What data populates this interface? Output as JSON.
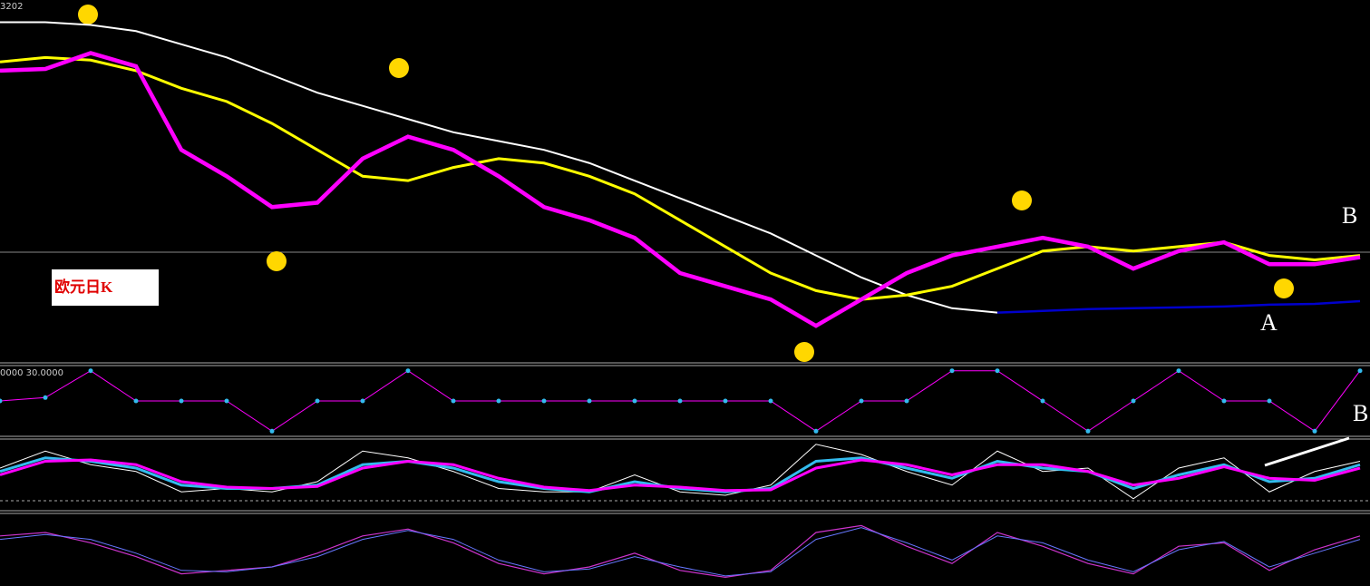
{
  "chart_data": [
    {
      "type": "line",
      "ylim": [
        0,
        400
      ],
      "annotations": {
        "corner": "3202",
        "title": "欧元日K",
        "a": "A",
        "b": "B"
      },
      "series": [
        {
          "name": null,
          "color": "#ffffff",
          "width": 2,
          "values": [
            385,
            385,
            382,
            375,
            360,
            345,
            325,
            305,
            290,
            275,
            260,
            250,
            240,
            225,
            205,
            185,
            165,
            145,
            120,
            95,
            75,
            60,
            55,
            null,
            null,
            null,
            null,
            null,
            null,
            null,
            null
          ]
        },
        {
          "name": null,
          "color": "#0000cc",
          "width": 2.5,
          "values": [
            null,
            null,
            null,
            null,
            null,
            null,
            null,
            null,
            null,
            null,
            null,
            null,
            null,
            null,
            null,
            null,
            null,
            null,
            null,
            null,
            null,
            null,
            55,
            57,
            59,
            60,
            61,
            62,
            64,
            65,
            68
          ]
        },
        {
          "name": null,
          "color": "#ffff00",
          "width": 3,
          "values": [
            340,
            345,
            342,
            330,
            310,
            295,
            270,
            240,
            210,
            205,
            220,
            230,
            225,
            210,
            190,
            160,
            130,
            100,
            80,
            70,
            75,
            85,
            105,
            125,
            130,
            125,
            130,
            135,
            120,
            115,
            120
          ]
        },
        {
          "name": null,
          "color": "#ff00ff",
          "width": 4.5,
          "values": [
            330,
            332,
            350,
            335,
            240,
            210,
            175,
            180,
            230,
            255,
            240,
            210,
            175,
            160,
            140,
            100,
            85,
            70,
            40,
            70,
            100,
            120,
            130,
            140,
            130,
            105,
            125,
            135,
            110,
            110,
            118
          ]
        }
      ]
    },
    {
      "type": "step",
      "ylim": [
        0,
        100
      ],
      "label": "0000 30.0000",
      "series": [
        {
          "name": null,
          "color": "#ff00ff",
          "dot": "#33bbee",
          "width": 1,
          "values": [
            50,
            55,
            95,
            50,
            50,
            50,
            5,
            50,
            50,
            95,
            50,
            50,
            50,
            50,
            50,
            50,
            50,
            50,
            5,
            50,
            50,
            95,
            95,
            50,
            5,
            50,
            95,
            50,
            50,
            5,
            95
          ]
        }
      ]
    },
    {
      "type": "line",
      "ylim": [
        0,
        100
      ],
      "annotation": "B",
      "series": [
        {
          "name": null,
          "color": "#ffffff",
          "width": 1,
          "values": [
            60,
            85,
            65,
            55,
            25,
            30,
            25,
            40,
            85,
            75,
            55,
            30,
            25,
            25,
            50,
            25,
            20,
            35,
            95,
            80,
            55,
            35,
            85,
            55,
            60,
            15,
            60,
            75,
            25,
            55,
            70
          ]
        },
        {
          "name": null,
          "color": "#33bbee",
          "width": 3,
          "values": [
            55,
            75,
            70,
            60,
            35,
            30,
            30,
            35,
            65,
            70,
            60,
            40,
            30,
            25,
            40,
            30,
            25,
            30,
            70,
            75,
            60,
            45,
            70,
            60,
            55,
            30,
            50,
            65,
            40,
            45,
            65
          ]
        },
        {
          "name": null,
          "color": "#ff00ff",
          "width": 3,
          "values": [
            50,
            70,
            72,
            65,
            40,
            32,
            30,
            33,
            60,
            70,
            65,
            45,
            32,
            27,
            35,
            32,
            27,
            28,
            60,
            72,
            65,
            50,
            65,
            65,
            55,
            35,
            45,
            62,
            45,
            42,
            60
          ]
        }
      ]
    },
    {
      "type": "line",
      "ylim": [
        0,
        100
      ],
      "series": [
        {
          "name": null,
          "color": "#cc33cc",
          "width": 1.2,
          "values": [
            70,
            75,
            60,
            40,
            15,
            20,
            25,
            45,
            70,
            80,
            60,
            30,
            15,
            25,
            45,
            20,
            10,
            20,
            75,
            85,
            55,
            30,
            75,
            55,
            30,
            15,
            55,
            60,
            20,
            50,
            70
          ]
        },
        {
          "name": null,
          "color": "#6677ff",
          "width": 1,
          "values": [
            65,
            72,
            65,
            45,
            20,
            18,
            25,
            40,
            65,
            78,
            65,
            35,
            18,
            22,
            40,
            25,
            12,
            18,
            65,
            82,
            60,
            35,
            70,
            60,
            35,
            18,
            50,
            62,
            25,
            45,
            65
          ]
        }
      ]
    }
  ]
}
